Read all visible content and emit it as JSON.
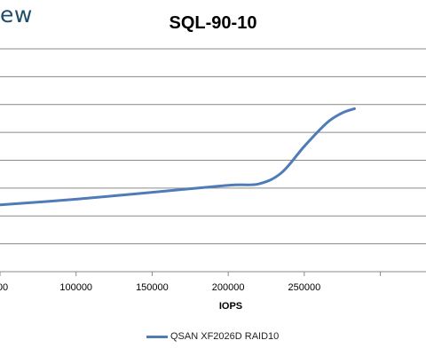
{
  "logo_text": "ew",
  "chart_data": {
    "type": "line",
    "title": "SQL-90-10",
    "xlabel": "IOPS",
    "ylabel": "",
    "x_ticks": [
      100000,
      150000,
      200000,
      250000
    ],
    "x_tick_labels_visible": [
      "00",
      "100000",
      "150000",
      "200000",
      "250000"
    ],
    "xlim": [
      50000,
      330000
    ],
    "grid": "horizontal",
    "legend_position": "bottom",
    "series": [
      {
        "name": "QSAN XF2026D RAID10",
        "color": "#4f7bb8",
        "x": [
          50000,
          100000,
          150000,
          200000,
          220000,
          235000,
          250000,
          265000,
          275000,
          283000
        ],
        "y": [
          2.4,
          2.6,
          2.85,
          3.1,
          3.15,
          3.55,
          4.5,
          5.35,
          5.7,
          5.85
        ]
      }
    ],
    "ylim": [
      0,
      8
    ]
  }
}
